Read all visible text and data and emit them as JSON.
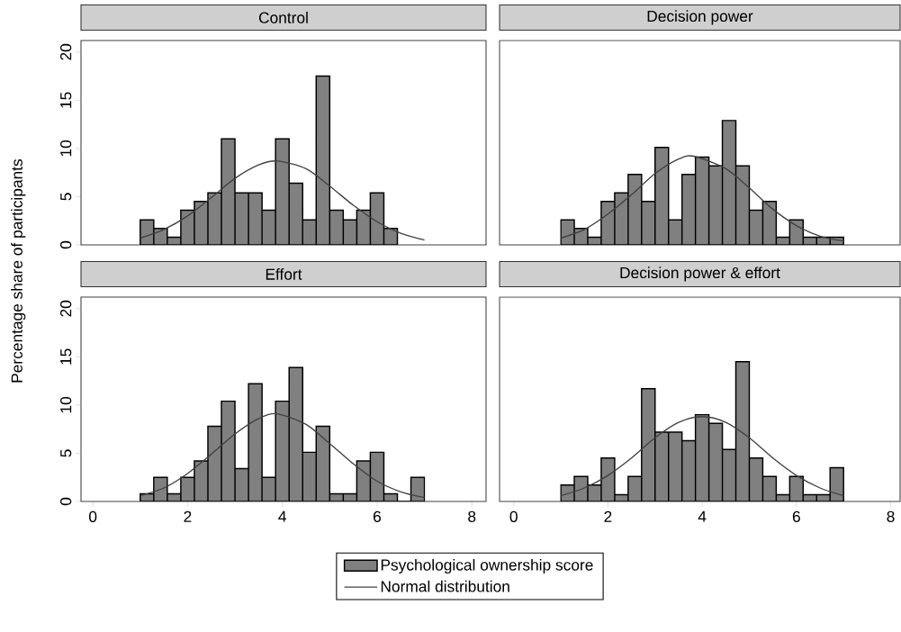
{
  "chart_data": [
    {
      "type": "histogram",
      "title": "Control",
      "ylabel": "Percentage share of participants",
      "xlim": [
        -0.25,
        8.3
      ],
      "ylim": [
        0,
        21.2
      ],
      "xticks": [
        0,
        2,
        4,
        6,
        8
      ],
      "yticks": [
        0,
        5,
        10,
        15,
        20
      ],
      "tick_labels": "y",
      "series": [
        {
          "type": "histogram",
          "color": "#808080",
          "bins": [
            1,
            1.2857,
            1.5714,
            1.8571,
            2.1429,
            2.4286,
            2.7143,
            3,
            3.2857,
            3.5714,
            3.8571,
            4.1429,
            4.4286,
            4.7143,
            5,
            5.2857,
            5.5714,
            5.8571,
            6.1429,
            6.4286
          ],
          "values": [
            2.6,
            1.7,
            0.8,
            3.6,
            4.5,
            5.4,
            11.0,
            5.4,
            5.4,
            3.6,
            11.0,
            6.4,
            2.6,
            17.5,
            3.6,
            2.6,
            3.6,
            5.4,
            1.7
          ]
        },
        {
          "type": "line",
          "color": "#404040",
          "x": [
            1,
            1.5,
            2,
            2.5,
            3,
            3.5,
            3.9,
            4.5,
            5,
            5.5,
            6,
            6.5,
            7
          ],
          "values": [
            0.7,
            1.6,
            3.0,
            4.9,
            6.9,
            8.3,
            8.7,
            7.9,
            6.1,
            4.1,
            2.4,
            1.2,
            0.5
          ]
        }
      ]
    },
    {
      "type": "histogram",
      "title": "Decision power",
      "xlim": [
        -0.3,
        8.2
      ],
      "ylim": [
        0,
        21.2
      ],
      "xticks": [
        0,
        2,
        4,
        6,
        8
      ],
      "yticks": [
        0,
        5,
        10,
        15,
        20
      ],
      "tick_labels": false,
      "series": [
        {
          "type": "histogram",
          "color": "#808080",
          "bins": [
            1,
            1.2857,
            1.5714,
            1.8571,
            2.1429,
            2.4286,
            2.7143,
            3,
            3.2857,
            3.5714,
            3.8571,
            4.1429,
            4.4286,
            4.7143,
            5,
            5.2857,
            5.5714,
            5.8571,
            6.1429,
            6.4286,
            6.7143,
            7
          ],
          "values": [
            2.6,
            1.7,
            0.8,
            4.5,
            5.4,
            7.3,
            4.5,
            10.1,
            2.6,
            7.3,
            9.1,
            8.2,
            12.9,
            8.2,
            3.6,
            4.5,
            0.8,
            2.6,
            0.8,
            0.8,
            0.8
          ]
        },
        {
          "type": "line",
          "color": "#404040",
          "x": [
            1,
            1.5,
            2,
            2.5,
            3,
            3.5,
            3.82,
            4.5,
            5,
            5.5,
            6,
            6.5,
            7
          ],
          "values": [
            0.7,
            1.6,
            3.2,
            5.2,
            7.4,
            8.9,
            9.2,
            7.9,
            5.9,
            3.7,
            2.0,
            0.9,
            0.4
          ]
        }
      ]
    },
    {
      "type": "histogram",
      "title": "Effort",
      "xlim": [
        -0.25,
        8.3
      ],
      "ylim": [
        0,
        21.2
      ],
      "xticks": [
        0,
        2,
        4,
        6,
        8
      ],
      "yticks": [
        0,
        5,
        10,
        15,
        20
      ],
      "legend": "bottom",
      "series": [
        {
          "type": "histogram",
          "name": "Psychological ownership score",
          "color": "#808080",
          "bins": [
            1,
            1.2857,
            1.5714,
            1.8571,
            2.1429,
            2.4286,
            2.7143,
            3,
            3.2857,
            3.5714,
            3.8571,
            4.1429,
            4.4286,
            4.7143,
            5,
            5.2857,
            5.5714,
            5.8571,
            6.1429,
            6.4286,
            6.7143,
            7
          ],
          "values": [
            0.8,
            2.5,
            0.8,
            2.5,
            4.2,
            7.8,
            10.4,
            3.4,
            12.2,
            2.5,
            10.4,
            13.9,
            5.1,
            7.8,
            0.8,
            0.8,
            4.2,
            5.1,
            0.8,
            0,
            2.5
          ]
        },
        {
          "type": "line",
          "name": "Normal distribution",
          "color": "#404040",
          "x": [
            1,
            1.5,
            2,
            2.5,
            3,
            3.5,
            3.88,
            4.5,
            5,
            5.5,
            6,
            6.5,
            7
          ],
          "values": [
            0.6,
            1.4,
            2.9,
            4.9,
            7.0,
            8.6,
            9.1,
            8.0,
            6.0,
            3.9,
            2.1,
            1.0,
            0.4
          ]
        }
      ]
    },
    {
      "type": "histogram",
      "title": "Decision power & effort",
      "xlim": [
        -0.3,
        8.2
      ],
      "ylim": [
        0,
        21.2
      ],
      "xticks": [
        0,
        2,
        4,
        6,
        8
      ],
      "yticks": [
        0,
        5,
        10,
        15,
        20
      ],
      "tick_labels": "x",
      "series": [
        {
          "type": "histogram",
          "color": "#808080",
          "bins": [
            1,
            1.2857,
            1.5714,
            1.8571,
            2.1429,
            2.4286,
            2.7143,
            3,
            3.2857,
            3.5714,
            3.8571,
            4.1429,
            4.4286,
            4.7143,
            5,
            5.2857,
            5.5714,
            5.8571,
            6.1429,
            6.4286,
            6.7143,
            7
          ],
          "values": [
            1.7,
            2.6,
            1.7,
            4.5,
            0.7,
            2.6,
            11.7,
            7.2,
            7.2,
            6.3,
            9.0,
            8.1,
            5.4,
            14.5,
            4.5,
            2.6,
            0.7,
            2.6,
            0.7,
            0.7,
            3.5
          ]
        },
        {
          "type": "line",
          "color": "#404040",
          "x": [
            1,
            1.5,
            2,
            2.5,
            3,
            3.5,
            4,
            4.5,
            5,
            5.5,
            6,
            6.5,
            7
          ],
          "values": [
            0.6,
            1.4,
            2.7,
            4.5,
            6.6,
            8.2,
            8.8,
            8.2,
            6.6,
            4.5,
            2.7,
            1.4,
            0.6
          ]
        }
      ]
    }
  ]
}
